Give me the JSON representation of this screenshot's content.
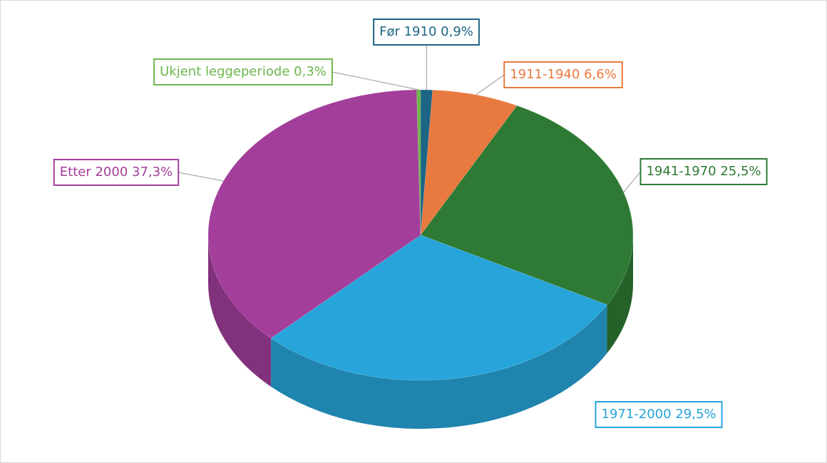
{
  "chart_data": {
    "type": "pie",
    "categories": [
      "Før 1910",
      "1911-1940",
      "1941-1970",
      "1971-2000",
      "Etter 2000",
      "Ukjent leggeperiode"
    ],
    "values": [
      0.9,
      6.6,
      25.5,
      29.5,
      37.3,
      0.3
    ],
    "value_labels": [
      "0,9%",
      "6,6%",
      "25,5%",
      "29,5%",
      "37,3%",
      "0,3%"
    ],
    "colors": [
      "#1d6584",
      "#e8793f",
      "#2e7a34",
      "#27a5da",
      "#a33e9b",
      "#6db64d"
    ]
  }
}
